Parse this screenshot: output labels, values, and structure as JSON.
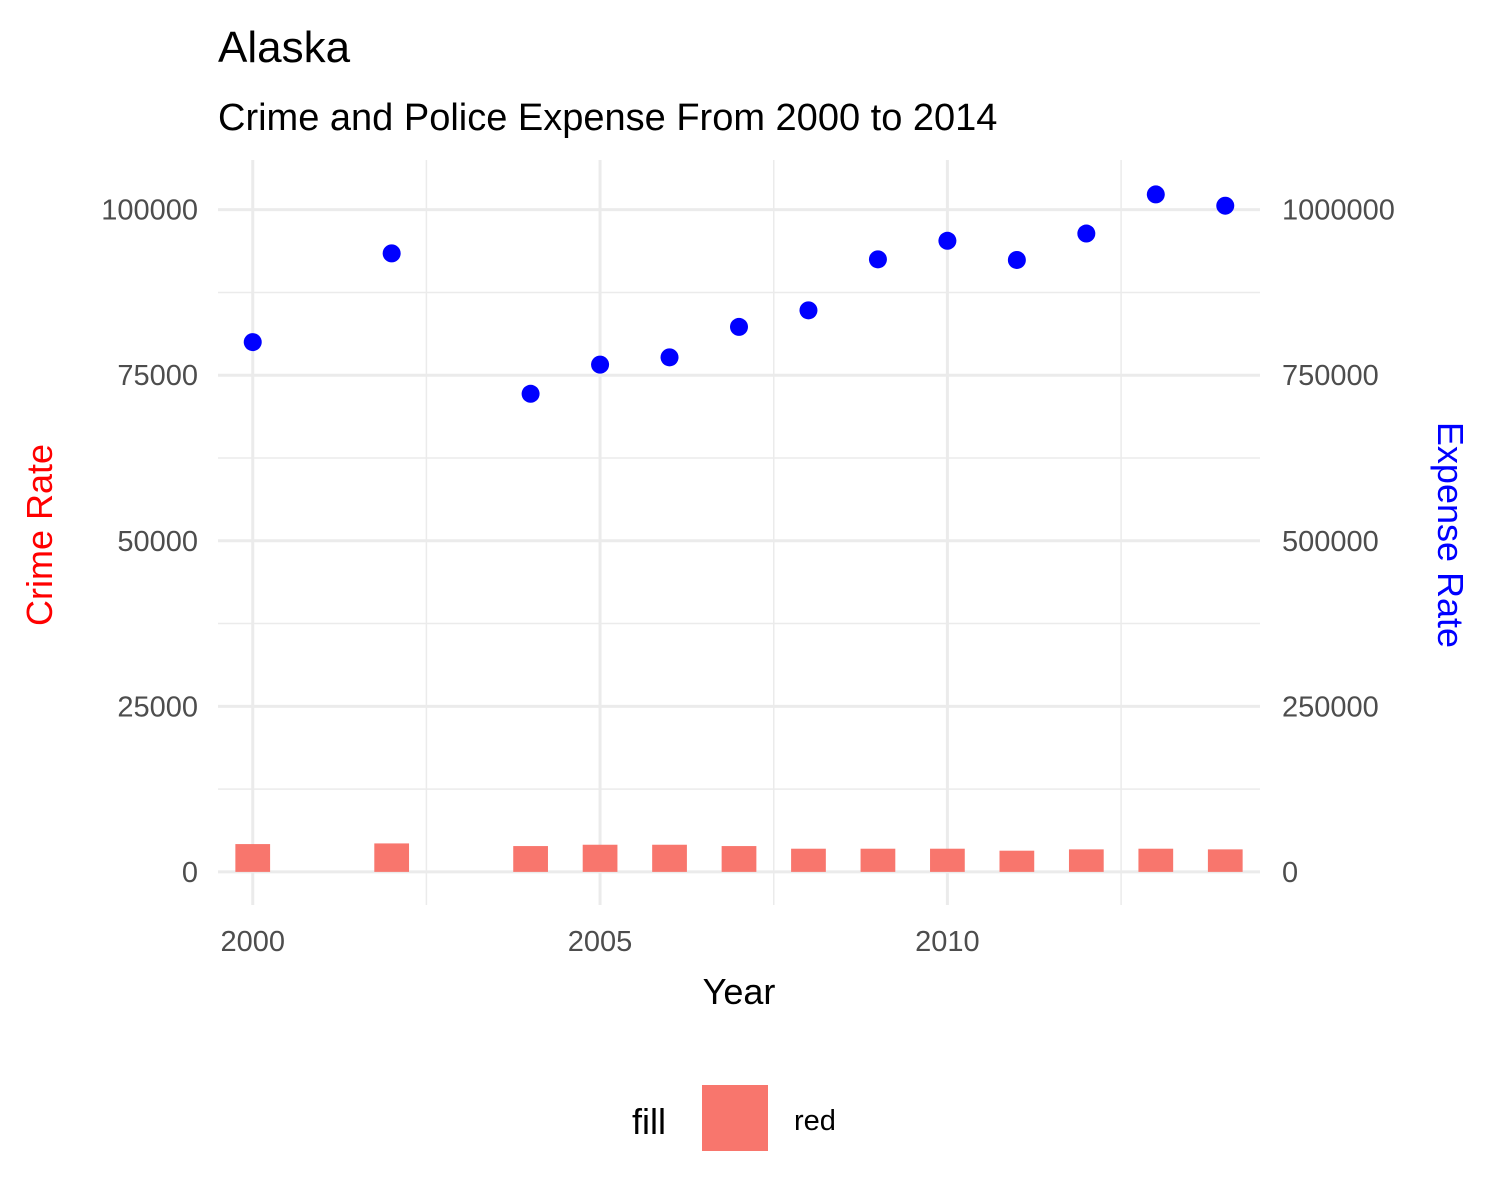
{
  "chart_data": {
    "type": "bar",
    "title": "Alaska",
    "subtitle": "Crime and Police Expense From 2000 to 2014",
    "xlabel": "Year",
    "ylabel_left": "Crime Rate",
    "ylabel_right": "Expense Rate",
    "xlim": [
      1999.5,
      2014.5
    ],
    "x_ticks": [
      2000,
      2005,
      2010
    ],
    "ylim_left": [
      -5000,
      107500
    ],
    "y_ticks_left": [
      0,
      25000,
      50000,
      75000,
      100000
    ],
    "ylim_right": [
      -50000,
      1075000
    ],
    "y_ticks_right": [
      0,
      250000,
      500000,
      750000,
      1000000
    ],
    "grid": true,
    "legend_position": "bottom",
    "legend_title": "fill",
    "series": [
      {
        "name": "red",
        "kind": "bar",
        "axis": "left",
        "color": "#F8766D",
        "x": [
          2000,
          2002,
          2004,
          2005,
          2006,
          2007,
          2008,
          2009,
          2010,
          2011,
          2012,
          2013,
          2014
        ],
        "values": [
          4200,
          4300,
          3900,
          4100,
          4100,
          3900,
          3500,
          3500,
          3500,
          3200,
          3400,
          3500,
          3400
        ]
      },
      {
        "kind": "point",
        "axis": "right",
        "color": "#0000FF",
        "x": [
          2000,
          2002,
          2004,
          2005,
          2006,
          2007,
          2008,
          2009,
          2010,
          2011,
          2012,
          2013,
          2014
        ],
        "values": [
          800000,
          934000,
          722000,
          766000,
          777000,
          823000,
          848000,
          925000,
          953000,
          924000,
          964000,
          1023000,
          1006000
        ]
      }
    ],
    "colors": {
      "ylabel_left": "#FF0000",
      "ylabel_right": "#0000FF",
      "grid": "#EBEBEB"
    }
  }
}
